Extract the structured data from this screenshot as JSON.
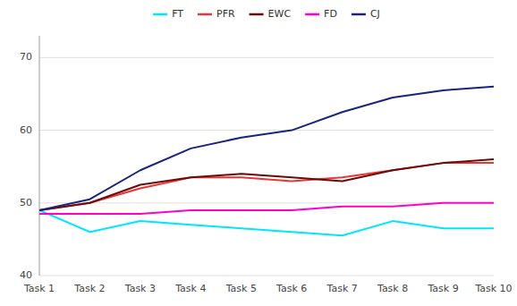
{
  "chart_data": {
    "type": "line",
    "categories": [
      "Task 1",
      "Task 2",
      "Task 3",
      "Task 4",
      "Task 5",
      "Task 6",
      "Task 7",
      "Task 8",
      "Task 9",
      "Task 10"
    ],
    "series": [
      {
        "name": "FT",
        "color": "#00e5ff",
        "values": [
          49.0,
          46.0,
          47.5,
          47.0,
          46.5,
          46.0,
          45.5,
          47.5,
          46.5,
          46.5
        ]
      },
      {
        "name": "PFR",
        "color": "#ee3333",
        "values": [
          49.0,
          50.0,
          52.0,
          53.5,
          53.5,
          53.0,
          53.5,
          54.5,
          55.5,
          55.5
        ]
      },
      {
        "name": "EWC",
        "color": "#6b0a0a",
        "values": [
          49.0,
          50.0,
          52.5,
          53.5,
          54.0,
          53.5,
          53.0,
          54.5,
          55.5,
          56.0
        ]
      },
      {
        "name": "FD",
        "color": "#ff00cc",
        "values": [
          48.5,
          48.5,
          48.5,
          49.0,
          49.0,
          49.0,
          49.5,
          49.5,
          50.0,
          50.0
        ]
      },
      {
        "name": "CJ",
        "color": "#1a237e",
        "values": [
          49.0,
          50.5,
          54.5,
          57.5,
          59.0,
          60.0,
          62.5,
          64.5,
          65.5,
          66.0
        ]
      }
    ],
    "ylim": [
      40,
      73
    ],
    "yticks": [
      40,
      50,
      60,
      70
    ],
    "grid": true,
    "legend": "top"
  }
}
